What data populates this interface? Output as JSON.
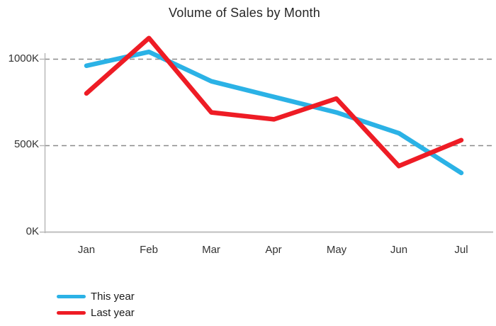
{
  "chart_data": {
    "type": "line",
    "title": "Volume of Sales by Month",
    "categories": [
      "Jan",
      "Feb",
      "Mar",
      "Apr",
      "May",
      "Jun",
      "Jul"
    ],
    "series": [
      {
        "name": "This year",
        "color": "#2bb2e6",
        "values": [
          960,
          1040,
          870,
          780,
          690,
          570,
          340
        ]
      },
      {
        "name": "Last year",
        "color": "#ee1c25",
        "values": [
          800,
          1120,
          690,
          650,
          770,
          380,
          530
        ]
      }
    ],
    "y_ticks": [
      {
        "label": "1000K",
        "value": 1000
      },
      {
        "label": "500K",
        "value": 500
      },
      {
        "label": "0K",
        "value": 0
      }
    ],
    "xlabel": "",
    "ylabel": "",
    "ylim": [
      0,
      1200
    ],
    "grid": "horizontal-dashed",
    "legend_position": "bottom-left",
    "axis_color": "#b5b5b5",
    "gridline_color": "#8a8a8a",
    "baseline_color": "#bfbfbf"
  }
}
